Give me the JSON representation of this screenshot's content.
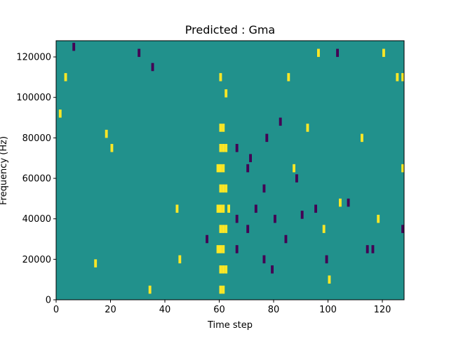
{
  "chart_data": {
    "type": "heatmap",
    "title": "Predicted : Gma",
    "xlabel": "Time step",
    "ylabel": "Frequency (Hz)",
    "xlim": [
      0,
      128
    ],
    "ylim": [
      0,
      128000
    ],
    "x_ticks": [
      0,
      20,
      40,
      60,
      80,
      100,
      120
    ],
    "x_tick_labels": [
      "0",
      "20",
      "40",
      "60",
      "80",
      "100",
      "120"
    ],
    "y_ticks": [
      0,
      20000,
      40000,
      60000,
      80000,
      100000,
      120000
    ],
    "y_tick_labels": [
      "0",
      "20000",
      "40000",
      "60000",
      "80000",
      "100000",
      "120000"
    ],
    "grid": false,
    "colormap": "viridis",
    "levels": {
      "low": -1,
      "mid": 0,
      "high": 1
    },
    "colors": {
      "low": "#440154",
      "mid": "#21918c",
      "high": "#fde725"
    },
    "background_level": 0,
    "cells": [
      {
        "t": 60,
        "f": 5000,
        "value": 1
      },
      {
        "t": 60,
        "f": 15000,
        "value": 1
      },
      {
        "t": 60,
        "f": 25000,
        "value": 1
      },
      {
        "t": 60,
        "f": 35000,
        "value": 1
      },
      {
        "t": 60,
        "f": 45000,
        "value": 1
      },
      {
        "t": 60,
        "f": 55000,
        "value": 1
      },
      {
        "t": 60,
        "f": 65000,
        "value": 1
      },
      {
        "t": 60,
        "f": 75000,
        "value": 1
      },
      {
        "t": 60,
        "f": 85000,
        "value": 1
      },
      {
        "t": 61,
        "f": 5000,
        "value": 1
      },
      {
        "t": 61,
        "f": 15000,
        "value": 1
      },
      {
        "t": 61,
        "f": 25000,
        "value": 1
      },
      {
        "t": 61,
        "f": 35000,
        "value": 1
      },
      {
        "t": 61,
        "f": 45000,
        "value": 1
      },
      {
        "t": 61,
        "f": 55000,
        "value": 1
      },
      {
        "t": 61,
        "f": 65000,
        "value": 1
      },
      {
        "t": 61,
        "f": 75000,
        "value": 1
      },
      {
        "t": 61,
        "f": 85000,
        "value": 1
      },
      {
        "t": 62,
        "f": 15000,
        "value": 1
      },
      {
        "t": 62,
        "f": 35000,
        "value": 1
      },
      {
        "t": 62,
        "f": 55000,
        "value": 1
      },
      {
        "t": 62,
        "f": 75000,
        "value": 1
      },
      {
        "t": 59,
        "f": 25000,
        "value": 1
      },
      {
        "t": 59,
        "f": 45000,
        "value": 1
      },
      {
        "t": 59,
        "f": 65000,
        "value": 1
      },
      {
        "t": 63,
        "f": 45000,
        "value": 1
      },
      {
        "t": 60,
        "f": 110000,
        "value": 1
      },
      {
        "t": 62,
        "f": 102000,
        "value": 1
      },
      {
        "t": 66,
        "f": 40000,
        "value": -1
      },
      {
        "t": 66,
        "f": 25000,
        "value": -1
      },
      {
        "t": 66,
        "f": 75000,
        "value": -1
      },
      {
        "t": 70,
        "f": 35000,
        "value": -1
      },
      {
        "t": 70,
        "f": 65000,
        "value": -1
      },
      {
        "t": 71,
        "f": 70000,
        "value": -1
      },
      {
        "t": 73,
        "f": 45000,
        "value": -1
      },
      {
        "t": 76,
        "f": 20000,
        "value": -1
      },
      {
        "t": 76,
        "f": 55000,
        "value": -1
      },
      {
        "t": 77,
        "f": 80000,
        "value": -1
      },
      {
        "t": 79,
        "f": 15000,
        "value": -1
      },
      {
        "t": 80,
        "f": 40000,
        "value": -1
      },
      {
        "t": 84,
        "f": 30000,
        "value": -1
      },
      {
        "t": 88,
        "f": 60000,
        "value": -1
      },
      {
        "t": 95,
        "f": 45000,
        "value": -1
      },
      {
        "t": 99,
        "f": 20000,
        "value": -1
      },
      {
        "t": 103,
        "f": 122000,
        "value": -1
      },
      {
        "t": 107,
        "f": 48000,
        "value": -1
      },
      {
        "t": 114,
        "f": 25000,
        "value": -1
      },
      {
        "t": 116,
        "f": 25000,
        "value": -1
      },
      {
        "t": 127,
        "f": 35000,
        "value": -1
      },
      {
        "t": 55,
        "f": 30000,
        "value": -1
      },
      {
        "t": 35,
        "f": 115000,
        "value": -1
      },
      {
        "t": 30,
        "f": 122000,
        "value": -1
      },
      {
        "t": 6,
        "f": 125000,
        "value": -1
      },
      {
        "t": 82,
        "f": 88000,
        "value": -1
      },
      {
        "t": 90,
        "f": 42000,
        "value": -1
      },
      {
        "t": 85,
        "f": 110000,
        "value": 1
      },
      {
        "t": 96,
        "f": 122000,
        "value": 1
      },
      {
        "t": 120,
        "f": 122000,
        "value": 1
      },
      {
        "t": 125,
        "f": 110000,
        "value": 1
      },
      {
        "t": 127,
        "f": 110000,
        "value": 1
      },
      {
        "t": 127,
        "f": 65000,
        "value": 1
      },
      {
        "t": 18,
        "f": 82000,
        "value": 1
      },
      {
        "t": 20,
        "f": 75000,
        "value": 1
      },
      {
        "t": 34,
        "f": 5000,
        "value": 1
      },
      {
        "t": 14,
        "f": 18000,
        "value": 1
      },
      {
        "t": 45,
        "f": 20000,
        "value": 1
      },
      {
        "t": 44,
        "f": 45000,
        "value": 1
      },
      {
        "t": 92,
        "f": 85000,
        "value": 1
      },
      {
        "t": 98,
        "f": 35000,
        "value": 1
      },
      {
        "t": 112,
        "f": 80000,
        "value": 1
      },
      {
        "t": 3,
        "f": 110000,
        "value": 1
      },
      {
        "t": 1,
        "f": 92000,
        "value": 1
      },
      {
        "t": 87,
        "f": 65000,
        "value": 1
      },
      {
        "t": 104,
        "f": 48000,
        "value": 1
      },
      {
        "t": 118,
        "f": 40000,
        "value": 1
      },
      {
        "t": 100,
        "f": 10000,
        "value": 1
      }
    ]
  }
}
